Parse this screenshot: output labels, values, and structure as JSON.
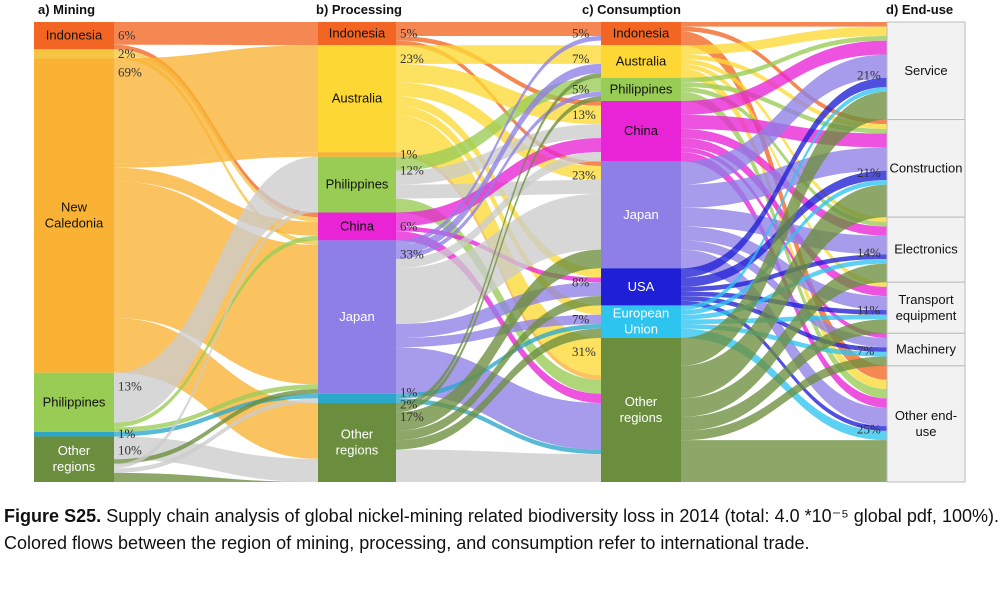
{
  "columns": [
    {
      "id": "mining",
      "title": "a) Mining",
      "nodes": [
        {
          "id": "m_indo",
          "label": "Indonesia",
          "share": 6,
          "color": "#f26522",
          "pct": "6%"
        },
        {
          "id": "m_gap",
          "label": "",
          "share": 2,
          "color": "#f5c542",
          "pct": "2%"
        },
        {
          "id": "m_nc",
          "label": "New\nCaledonia",
          "share": 69,
          "color": "#f9b233",
          "pct": "69%"
        },
        {
          "id": "m_phil",
          "label": "Philippines",
          "share": 13,
          "color": "#99cc55",
          "pct": "13%"
        },
        {
          "id": "m_one",
          "label": "",
          "share": 1,
          "color": "#2aa7c9",
          "pct": "1%"
        },
        {
          "id": "m_other",
          "label": "Other\nregions",
          "share": 10,
          "color": "#6b8e3e",
          "pct": "10%"
        }
      ]
    },
    {
      "id": "processing",
      "title": "b) Processing",
      "nodes": [
        {
          "id": "p_indo",
          "label": "Indonesia",
          "share": 5,
          "color": "#f26522",
          "pct": "5%"
        },
        {
          "id": "p_aus",
          "label": "Australia",
          "share": 23,
          "color": "#fdd835",
          "pct": "23%"
        },
        {
          "id": "p_gap",
          "label": "",
          "share": 1,
          "color": "#f9b233",
          "pct": "1%"
        },
        {
          "id": "p_phil",
          "label": "Philippines",
          "share": 12,
          "color": "#99cc55",
          "pct": "12%"
        },
        {
          "id": "p_china",
          "label": "China",
          "share": 6,
          "color": "#e923d6",
          "pct": "6%"
        },
        {
          "id": "p_japan",
          "label": "Japan",
          "share": 33,
          "color": "#8e7fe6",
          "pct": "33%"
        },
        {
          "id": "p_small",
          "label": "",
          "share": 2,
          "color": "#2aa7c9",
          "pct": "1%\n2%"
        },
        {
          "id": "p_other",
          "label": "Other\nregions",
          "share": 17,
          "color": "#6b8e3e",
          "pct": "17%"
        }
      ]
    },
    {
      "id": "consumption",
      "title": "c) Consumption",
      "nodes": [
        {
          "id": "c_indo",
          "label": "Indonesia",
          "share": 5,
          "color": "#f26522",
          "pct": "5%"
        },
        {
          "id": "c_aus",
          "label": "Australia",
          "share": 7,
          "color": "#fdd835",
          "pct": "7%"
        },
        {
          "id": "c_phil",
          "label": "Philippines",
          "share": 5,
          "color": "#99cc55",
          "pct": "5%"
        },
        {
          "id": "c_china",
          "label": "China",
          "share": 13,
          "color": "#e923d6",
          "pct": "13%"
        },
        {
          "id": "c_japan",
          "label": "Japan",
          "share": 23,
          "color": "#8e7fe6",
          "pct": "23%"
        },
        {
          "id": "c_usa",
          "label": "USA",
          "share": 8,
          "color": "#1f1fd6",
          "pct": "8%"
        },
        {
          "id": "c_eu",
          "label": "European\nUnion",
          "share": 7,
          "color": "#2ec4f0",
          "pct": "7%"
        },
        {
          "id": "c_other",
          "label": "Other\nregions",
          "share": 31,
          "color": "#6b8e3e",
          "pct": "31%"
        }
      ]
    },
    {
      "id": "enduse",
      "title": "d) End-use",
      "nodes": [
        {
          "id": "e_service",
          "label": "Service",
          "share": 21,
          "color": "#f2f2f2",
          "pct": "21%"
        },
        {
          "id": "e_constr",
          "label": "Construction",
          "share": 21,
          "color": "#f2f2f2",
          "pct": "21%"
        },
        {
          "id": "e_elec",
          "label": "Electronics",
          "share": 14,
          "color": "#f2f2f2",
          "pct": "14%"
        },
        {
          "id": "e_transport",
          "label": "Transport\nequipment",
          "share": 11,
          "color": "#f2f2f2",
          "pct": "11%"
        },
        {
          "id": "e_mach",
          "label": "Machinery",
          "share": 7,
          "color": "#f2f2f2",
          "pct": "7%"
        },
        {
          "id": "e_otherend",
          "label": "Other end-\nuse",
          "share": 25,
          "color": "#f2f2f2",
          "pct": "25%"
        }
      ]
    }
  ],
  "flows": [
    {
      "source": "m_indo",
      "target": "p_indo",
      "value": 5,
      "color": "#f26522"
    },
    {
      "source": "m_indo",
      "target": "p_china",
      "value": 1,
      "color": "#f26522"
    },
    {
      "source": "m_gap",
      "target": "p_china",
      "value": 1,
      "color": "#f5c542"
    },
    {
      "source": "m_gap",
      "target": "p_japan",
      "value": 1,
      "color": "#f5c542"
    },
    {
      "source": "m_nc",
      "target": "p_aus",
      "value": 23,
      "color": "#f9b233"
    },
    {
      "source": "m_nc",
      "target": "p_gap",
      "value": 1,
      "color": "#f9b233"
    },
    {
      "source": "m_nc",
      "target": "p_china",
      "value": 3,
      "color": "#f9b233"
    },
    {
      "source": "m_nc",
      "target": "p_japan",
      "value": 30,
      "color": "#f9b233"
    },
    {
      "source": "m_nc",
      "target": "p_other",
      "value": 12,
      "color": "#f9b233"
    },
    {
      "source": "m_phil",
      "target": "p_phil",
      "value": 11,
      "color": "#cccccc"
    },
    {
      "source": "m_phil",
      "target": "p_china",
      "value": 1,
      "color": "#99cc55"
    },
    {
      "source": "m_phil",
      "target": "p_japan",
      "value": 1,
      "color": "#99cc55"
    },
    {
      "source": "m_one",
      "target": "p_small",
      "value": 1,
      "color": "#2aa7c9"
    },
    {
      "source": "m_other",
      "target": "p_other",
      "value": 5,
      "color": "#cccccc"
    },
    {
      "source": "m_other",
      "target": "p_japan",
      "value": 1,
      "color": "#6b8e3e"
    },
    {
      "source": "m_other",
      "target": "p_phil",
      "value": 1,
      "color": "#cccccc"
    },
    {
      "source": "m_other",
      "target": "p_small",
      "value": 1,
      "color": "#cccccc"
    },
    {
      "source": "m_other",
      "target": "p_other",
      "value": 2,
      "color": "#6b8e3e"
    },
    {
      "source": "p_indo",
      "target": "c_indo",
      "value": 3,
      "color": "#f26522"
    },
    {
      "source": "p_indo",
      "target": "c_china",
      "value": 1,
      "color": "#f26522"
    },
    {
      "source": "p_indo",
      "target": "c_japan",
      "value": 1,
      "color": "#f26522"
    },
    {
      "source": "p_aus",
      "target": "c_aus",
      "value": 4,
      "color": "#fdd835"
    },
    {
      "source": "p_aus",
      "target": "c_china",
      "value": 4,
      "color": "#fdd835"
    },
    {
      "source": "p_aus",
      "target": "c_japan",
      "value": 3,
      "color": "#fdd835"
    },
    {
      "source": "p_aus",
      "target": "c_usa",
      "value": 2,
      "color": "#fdd835"
    },
    {
      "source": "p_aus",
      "target": "c_eu",
      "value": 2,
      "color": "#fdd835"
    },
    {
      "source": "p_aus",
      "target": "c_other",
      "value": 8,
      "color": "#fdd835"
    },
    {
      "source": "p_gap",
      "target": "c_other",
      "value": 1,
      "color": "#f9b233"
    },
    {
      "source": "p_phil",
      "target": "c_phil",
      "value": 3,
      "color": "#99cc55"
    },
    {
      "source": "p_phil",
      "target": "c_china",
      "value": 3,
      "color": "#cccccc"
    },
    {
      "source": "p_phil",
      "target": "c_japan",
      "value": 3,
      "color": "#cccccc"
    },
    {
      "source": "p_phil",
      "target": "c_other",
      "value": 3,
      "color": "#99cc55"
    },
    {
      "source": "p_china",
      "target": "c_china",
      "value": 3,
      "color": "#e923d6"
    },
    {
      "source": "p_china",
      "target": "c_usa",
      "value": 1,
      "color": "#e923d6"
    },
    {
      "source": "p_china",
      "target": "c_other",
      "value": 2,
      "color": "#e923d6"
    },
    {
      "source": "p_japan",
      "target": "c_indo",
      "value": 1,
      "color": "#8e7fe6"
    },
    {
      "source": "p_japan",
      "target": "c_aus",
      "value": 2,
      "color": "#8e7fe6"
    },
    {
      "source": "p_japan",
      "target": "c_phil",
      "value": 1,
      "color": "#8e7fe6"
    },
    {
      "source": "p_japan",
      "target": "c_china",
      "value": 2,
      "color": "#cccccc"
    },
    {
      "source": "p_japan",
      "target": "c_japan",
      "value": 12,
      "color": "#cccccc"
    },
    {
      "source": "p_japan",
      "target": "c_usa",
      "value": 3,
      "color": "#8e7fe6"
    },
    {
      "source": "p_japan",
      "target": "c_eu",
      "value": 2,
      "color": "#8e7fe6"
    },
    {
      "source": "p_japan",
      "target": "c_other",
      "value": 10,
      "color": "#8e7fe6"
    },
    {
      "source": "p_small",
      "target": "c_eu",
      "value": 1,
      "color": "#2aa7c9"
    },
    {
      "source": "p_small",
      "target": "c_other",
      "value": 1,
      "color": "#2aa7c9"
    },
    {
      "source": "p_other",
      "target": "c_aus",
      "value": 1,
      "color": "#6b8e3e"
    },
    {
      "source": "p_other",
      "target": "c_phil",
      "value": 1,
      "color": "#6b8e3e"
    },
    {
      "source": "p_other",
      "target": "c_japan",
      "value": 4,
      "color": "#6b8e3e"
    },
    {
      "source": "p_other",
      "target": "c_usa",
      "value": 2,
      "color": "#6b8e3e"
    },
    {
      "source": "p_other",
      "target": "c_eu",
      "value": 2,
      "color": "#6b8e3e"
    },
    {
      "source": "p_other",
      "target": "c_other",
      "value": 7,
      "color": "#cccccc"
    },
    {
      "source": "c_indo",
      "target": "e_service",
      "value": 1,
      "color": "#f26522"
    },
    {
      "source": "c_indo",
      "target": "e_constr",
      "value": 1,
      "color": "#f26522"
    },
    {
      "source": "c_indo",
      "target": "e_otherend",
      "value": 3,
      "color": "#f26522"
    },
    {
      "source": "c_aus",
      "target": "e_service",
      "value": 2,
      "color": "#fdd835"
    },
    {
      "source": "c_aus",
      "target": "e_constr",
      "value": 1,
      "color": "#fdd835"
    },
    {
      "source": "c_aus",
      "target": "e_elec",
      "value": 1,
      "color": "#fdd835"
    },
    {
      "source": "c_aus",
      "target": "e_transport",
      "value": 1,
      "color": "#fdd835"
    },
    {
      "source": "c_aus",
      "target": "e_otherend",
      "value": 2,
      "color": "#fdd835"
    },
    {
      "source": "c_phil",
      "target": "e_service",
      "value": 1,
      "color": "#99cc55"
    },
    {
      "source": "c_phil",
      "target": "e_constr",
      "value": 1,
      "color": "#99cc55"
    },
    {
      "source": "c_phil",
      "target": "e_elec",
      "value": 1,
      "color": "#99cc55"
    },
    {
      "source": "c_phil",
      "target": "e_otherend",
      "value": 2,
      "color": "#99cc55"
    },
    {
      "source": "c_china",
      "target": "e_service",
      "value": 3,
      "color": "#e923d6"
    },
    {
      "source": "c_china",
      "target": "e_constr",
      "value": 3,
      "color": "#e923d6"
    },
    {
      "source": "c_china",
      "target": "e_elec",
      "value": 2,
      "color": "#e923d6"
    },
    {
      "source": "c_china",
      "target": "e_transport",
      "value": 2,
      "color": "#e923d6"
    },
    {
      "source": "c_china",
      "target": "e_mach",
      "value": 1,
      "color": "#e923d6"
    },
    {
      "source": "c_china",
      "target": "e_otherend",
      "value": 2,
      "color": "#e923d6"
    },
    {
      "source": "c_japan",
      "target": "e_service",
      "value": 5,
      "color": "#8e7fe6"
    },
    {
      "source": "c_japan",
      "target": "e_constr",
      "value": 5,
      "color": "#8e7fe6"
    },
    {
      "source": "c_japan",
      "target": "e_elec",
      "value": 4,
      "color": "#8e7fe6"
    },
    {
      "source": "c_japan",
      "target": "e_transport",
      "value": 3,
      "color": "#8e7fe6"
    },
    {
      "source": "c_japan",
      "target": "e_mach",
      "value": 2,
      "color": "#8e7fe6"
    },
    {
      "source": "c_japan",
      "target": "e_otherend",
      "value": 4,
      "color": "#8e7fe6"
    },
    {
      "source": "c_usa",
      "target": "e_service",
      "value": 2,
      "color": "#1f1fd6"
    },
    {
      "source": "c_usa",
      "target": "e_constr",
      "value": 2,
      "color": "#1f1fd6"
    },
    {
      "source": "c_usa",
      "target": "e_elec",
      "value": 1,
      "color": "#1f1fd6"
    },
    {
      "source": "c_usa",
      "target": "e_transport",
      "value": 1,
      "color": "#1f1fd6"
    },
    {
      "source": "c_usa",
      "target": "e_mach",
      "value": 1,
      "color": "#1f1fd6"
    },
    {
      "source": "c_usa",
      "target": "e_otherend",
      "value": 1,
      "color": "#1f1fd6"
    },
    {
      "source": "c_eu",
      "target": "e_service",
      "value": 1,
      "color": "#2ec4f0"
    },
    {
      "source": "c_eu",
      "target": "e_constr",
      "value": 1,
      "color": "#2ec4f0"
    },
    {
      "source": "c_eu",
      "target": "e_elec",
      "value": 1,
      "color": "#2ec4f0"
    },
    {
      "source": "c_eu",
      "target": "e_transport",
      "value": 1,
      "color": "#2ec4f0"
    },
    {
      "source": "c_eu",
      "target": "e_mach",
      "value": 1,
      "color": "#2ec4f0"
    },
    {
      "source": "c_eu",
      "target": "e_otherend",
      "value": 2,
      "color": "#2ec4f0"
    },
    {
      "source": "c_other",
      "target": "e_service",
      "value": 6,
      "color": "#6b8e3e"
    },
    {
      "source": "c_other",
      "target": "e_constr",
      "value": 7,
      "color": "#6b8e3e"
    },
    {
      "source": "c_other",
      "target": "e_elec",
      "value": 4,
      "color": "#6b8e3e"
    },
    {
      "source": "c_other",
      "target": "e_transport",
      "value": 3,
      "color": "#6b8e3e"
    },
    {
      "source": "c_other",
      "target": "e_mach",
      "value": 2,
      "color": "#6b8e3e"
    },
    {
      "source": "c_other",
      "target": "e_otherend",
      "value": 9,
      "color": "#6b8e3e"
    }
  ],
  "caption": {
    "label": "Figure S25.",
    "text": " Supply chain analysis of global nickel-mining related biodiversity loss in 2014 (total: 4.0 *10⁻⁵ global pdf, 100%). Colored flows between the region of mining, processing, and consumption refer to international trade."
  }
}
